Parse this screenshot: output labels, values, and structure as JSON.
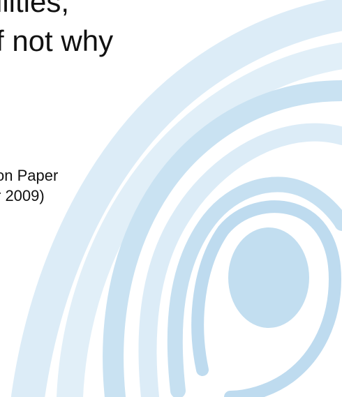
{
  "slide": {
    "title_lines": [
      "ilities,",
      "f not why"
    ],
    "subtitle_lines": [
      "on Paper",
      "r 2009)"
    ]
  },
  "colors": {
    "background": "#ffffff",
    "text": "#111111",
    "swirl_light": "#dcecf7",
    "swirl_mid": "#cfe5f3",
    "swirl_dark": "#c2def0"
  },
  "decoration": {
    "name": "concentric-swirl"
  }
}
